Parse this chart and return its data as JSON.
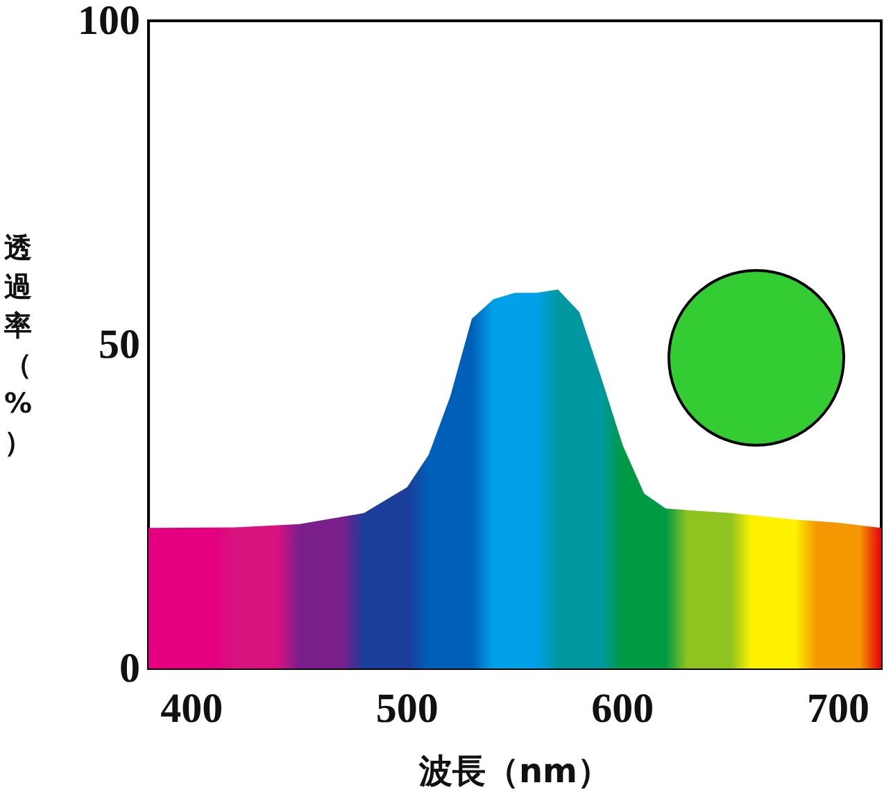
{
  "chart_data": {
    "type": "area",
    "xlabel": "波長（nm）",
    "ylabel": "透過率（%）",
    "xlim": [
      380,
      720
    ],
    "xticks": [
      400,
      500,
      600,
      700
    ],
    "ylim": [
      0,
      100
    ],
    "yticks": [
      0,
      50,
      100
    ],
    "grid": false,
    "series": [
      {
        "x": [
          380,
          420,
          450,
          480,
          500,
          510,
          520,
          530,
          540,
          550,
          560,
          570,
          580,
          590,
          600,
          610,
          620,
          650,
          680,
          700,
          720
        ],
        "values": [
          21.7,
          21.8,
          22.3,
          24,
          28,
          33,
          42,
          54,
          57,
          58,
          58,
          58.5,
          55,
          45,
          34.5,
          27,
          24.7,
          24,
          23,
          22.5,
          21.7
        ]
      }
    ]
  }
}
